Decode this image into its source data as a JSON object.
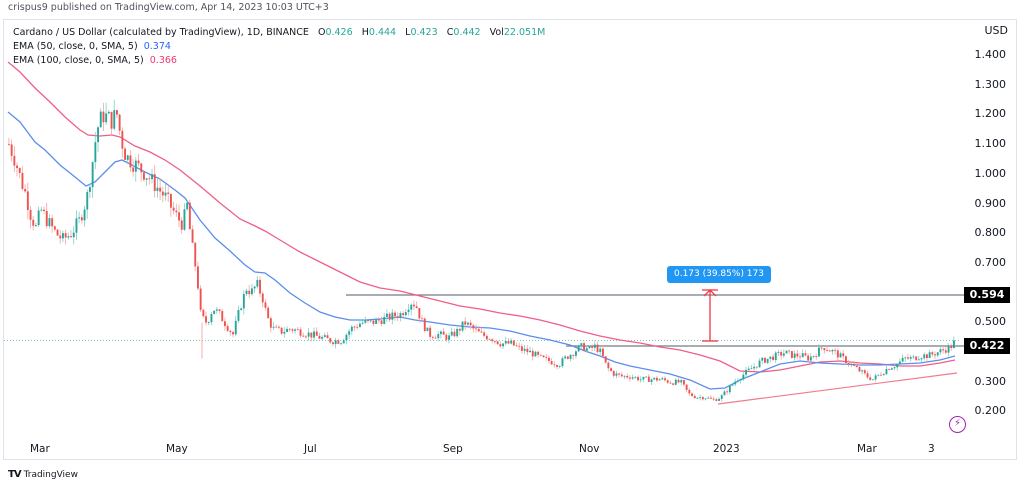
{
  "header": {
    "published": "crispus9 published on TradingView.com, Apr 14, 2023 10:03 UTC+3"
  },
  "legend": {
    "symbol": "Cardano / US Dollar (calculated by TradingView), 1D, BINANCE",
    "ohlc": {
      "o_label": "O",
      "o": "0.426",
      "h_label": "H",
      "h": "0.444",
      "l_label": "L",
      "l": "0.423",
      "c_label": "C",
      "c": "0.442",
      "vol_label": "Vol",
      "vol": "22.051M"
    },
    "ema50": {
      "label": "EMA (50, close, 0, SMA, 5)",
      "value": "0.374"
    },
    "ema100": {
      "label": "EMA (100, close, 0, SMA, 5)",
      "value": "0.366"
    }
  },
  "axis": {
    "currency": "USD",
    "y_ticks": [
      "1.400",
      "1.300",
      "1.200",
      "1.100",
      "1.000",
      "0.900",
      "0.800",
      "0.700",
      "0.500",
      "0.300",
      "0.200"
    ],
    "x_ticks": [
      "Mar",
      "May",
      "Jul",
      "Sep",
      "Nov",
      "2023",
      "Mar",
      "3"
    ]
  },
  "price_tags": {
    "resistance": "0.594",
    "current": "0.422"
  },
  "measure": {
    "label": "0.173 (39.85%) 173"
  },
  "footer": {
    "brand": "TradingView",
    "brand_mark": "TV"
  },
  "colors": {
    "up": "#26a69a",
    "down": "#ef5350",
    "ema50": "#5b8def",
    "ema100": "#ef5f86",
    "measure": "#2196f3",
    "trend": "#f07b8e",
    "alert": "#9c27b0"
  },
  "chart_data": {
    "type": "candlestick",
    "title": "Cardano / US Dollar (calculated by TradingView), 1D, BINANCE",
    "xlabel": "",
    "ylabel": "USD",
    "ylim": [
      0.15,
      1.45
    ],
    "x": [
      "Mar 2022",
      "Apr 2022",
      "May 2022",
      "Jun 2022",
      "Jul 2022",
      "Aug 2022",
      "Sep 2022",
      "Oct 2022",
      "Nov 2022",
      "Dec 2022",
      "Jan 2023",
      "Feb 2023",
      "Mar 2023",
      "Apr 2023"
    ],
    "series": [
      {
        "name": "ADA/USD close (approx)",
        "values": [
          0.8,
          1.18,
          0.52,
          0.48,
          0.47,
          0.55,
          0.47,
          0.4,
          0.32,
          0.25,
          0.34,
          0.4,
          0.33,
          0.442
        ]
      },
      {
        "name": "EMA 50",
        "values": [
          1.05,
          0.95,
          0.85,
          0.58,
          0.5,
          0.51,
          0.49,
          0.43,
          0.4,
          0.33,
          0.31,
          0.36,
          0.36,
          0.374
        ]
      },
      {
        "name": "EMA 100",
        "values": [
          1.3,
          1.02,
          0.88,
          0.72,
          0.62,
          0.59,
          0.55,
          0.5,
          0.45,
          0.4,
          0.36,
          0.37,
          0.36,
          0.366
        ]
      }
    ],
    "annotations": [
      {
        "type": "horizontal_line",
        "value": 0.594,
        "label": "0.594"
      },
      {
        "type": "horizontal_line",
        "value": 0.422,
        "label": "0.422"
      },
      {
        "type": "measure",
        "from": 0.422,
        "to": 0.594,
        "text": "0.173 (39.85%) 173"
      },
      {
        "type": "trendline",
        "from": [
          0.23,
          "Dec 2022"
        ],
        "to": [
          0.335,
          "Apr 2023"
        ]
      }
    ],
    "last": {
      "open": 0.426,
      "high": 0.444,
      "low": 0.423,
      "close": 0.442,
      "volume": "22.051M"
    },
    "grid": false,
    "legend_position": "top-left"
  }
}
